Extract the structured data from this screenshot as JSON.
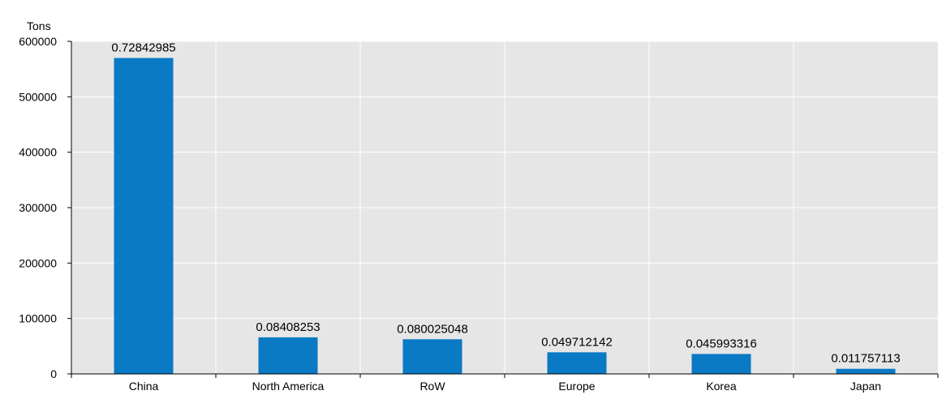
{
  "chart_data": {
    "type": "bar",
    "ylabel": "Tons",
    "ylim": [
      0,
      600000
    ],
    "yticks": [
      0,
      100000,
      200000,
      300000,
      400000,
      500000,
      600000
    ],
    "grid": true,
    "legend": "none",
    "categories": [
      "China",
      "North America",
      "RoW",
      "Europe",
      "Korea",
      "Japan"
    ],
    "values": [
      570000,
      66000,
      62500,
      39000,
      36000,
      9200
    ],
    "data_labels": [
      "0.72842985",
      "0.08408253",
      "0.080025048",
      "0.049712142",
      "0.045993316",
      "0.011757113"
    ],
    "colors": {
      "bar": "#0a7ac4",
      "plot_bg": "#e6e6e6",
      "grid": "#ffffff",
      "axis": "#000000"
    }
  }
}
